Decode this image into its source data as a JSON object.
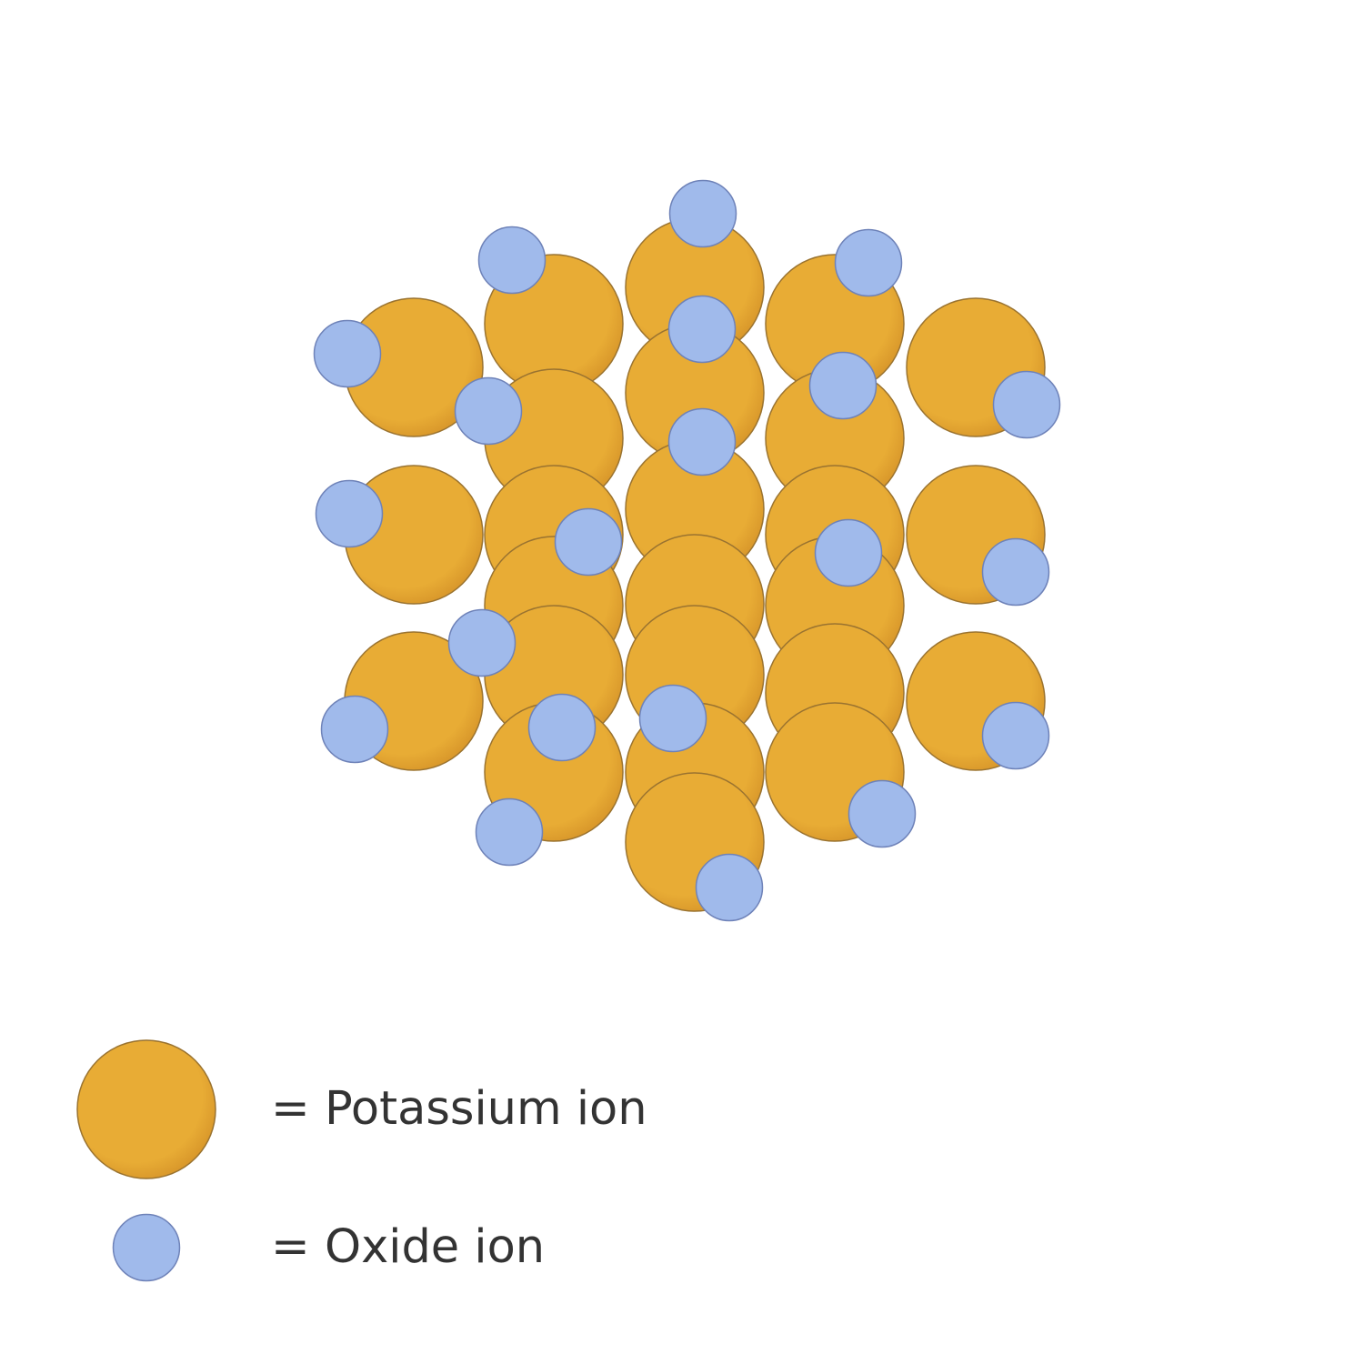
{
  "colors": {
    "potassium_fill": "#E8AC35",
    "potassium_stroke": "#9A7330",
    "oxide_fill": "#A0BAEB",
    "oxide_stroke": "#6E82B8",
    "label_text": "#333333"
  },
  "legend": {
    "potassium_label": "= Potassium ion",
    "oxide_label": "= Oxide ion"
  }
}
